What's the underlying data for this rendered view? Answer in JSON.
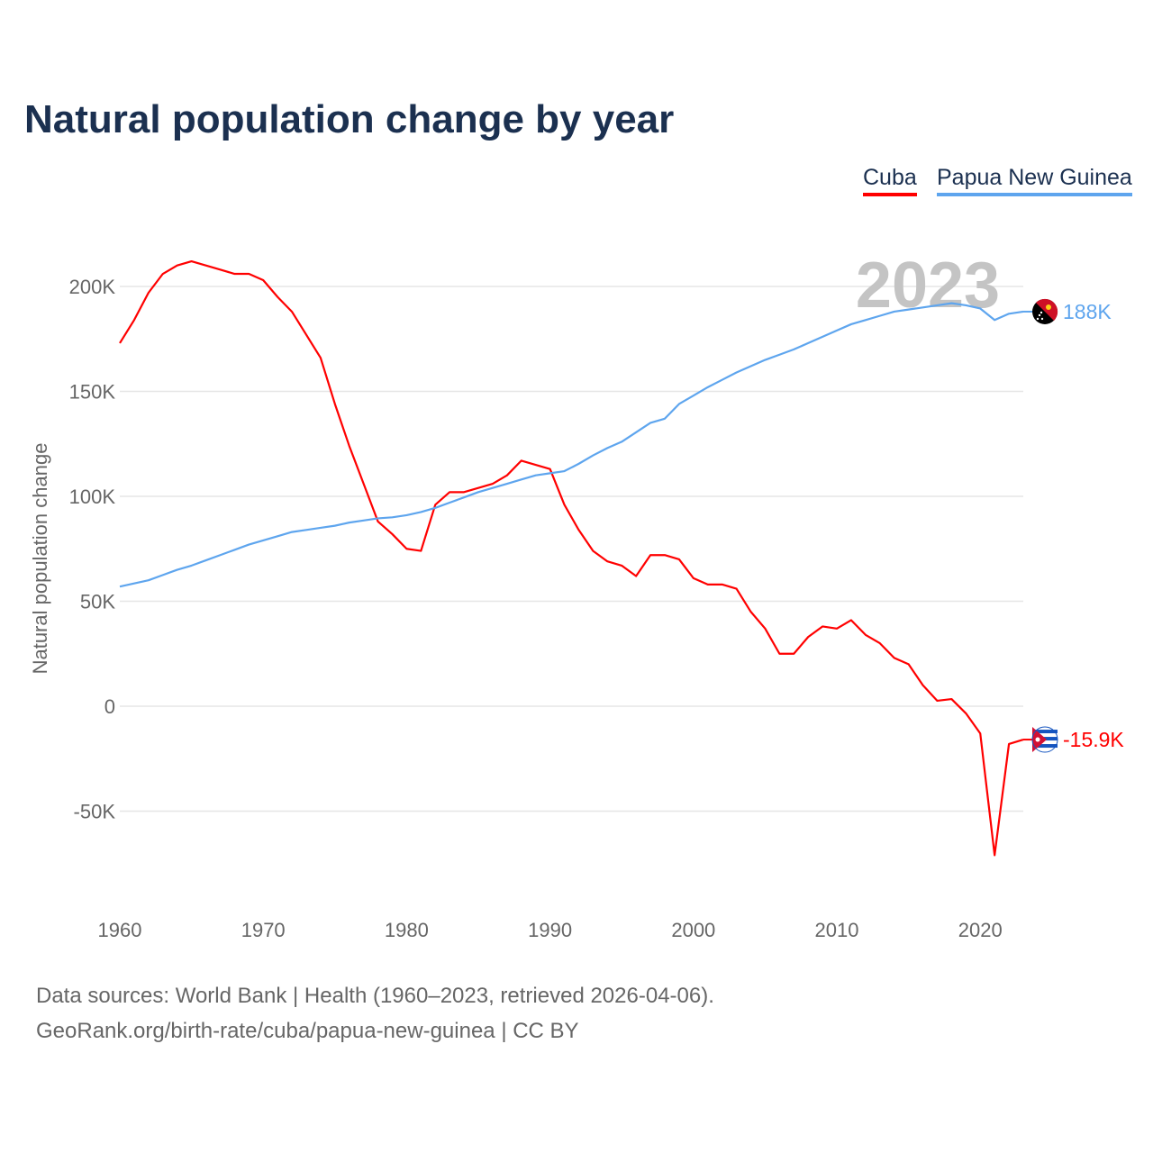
{
  "chart_data": {
    "type": "line",
    "title": "Natural population change by year",
    "xlabel": "",
    "ylabel": "Natural population change",
    "xlim": [
      1960,
      2023
    ],
    "ylim": [
      -100000,
      220000
    ],
    "grid": true,
    "legend_position": "top-right",
    "year_label": "2023",
    "x_ticks": [
      1960,
      1970,
      1980,
      1990,
      2000,
      2010,
      2020
    ],
    "x_tick_labels": [
      "1960",
      "1970",
      "1980",
      "1990",
      "2000",
      "2010",
      "2020"
    ],
    "y_ticks": [
      -50000,
      0,
      50000,
      100000,
      150000,
      200000
    ],
    "y_tick_labels": [
      "-50K",
      "0",
      "50K",
      "100K",
      "150K",
      "200K"
    ],
    "x": [
      1960,
      1961,
      1962,
      1963,
      1964,
      1965,
      1966,
      1967,
      1968,
      1969,
      1970,
      1971,
      1972,
      1973,
      1974,
      1975,
      1976,
      1977,
      1978,
      1979,
      1980,
      1981,
      1982,
      1983,
      1984,
      1985,
      1986,
      1987,
      1988,
      1989,
      1990,
      1991,
      1992,
      1993,
      1994,
      1995,
      1996,
      1997,
      1998,
      1999,
      2000,
      2001,
      2002,
      2003,
      2004,
      2005,
      2006,
      2007,
      2008,
      2009,
      2010,
      2011,
      2012,
      2013,
      2014,
      2015,
      2016,
      2017,
      2018,
      2019,
      2020,
      2021,
      2022,
      2023
    ],
    "series": [
      {
        "name": "Cuba",
        "color": "#ff0000",
        "end_label": "-15.9K",
        "values": [
          173000,
          184000,
          197000,
          206000,
          210000,
          212000,
          210000,
          208000,
          206000,
          206000,
          203000,
          195000,
          188000,
          177000,
          166000,
          144000,
          124000,
          106000,
          88000,
          82000,
          75000,
          74000,
          96000,
          102000,
          102000,
          104000,
          106000,
          110000,
          117000,
          115000,
          113000,
          96000,
          84000,
          74000,
          69000,
          67000,
          62000,
          72000,
          72000,
          70000,
          61000,
          58000,
          58000,
          56000,
          45000,
          37000,
          25000,
          25000,
          33000,
          38000,
          37000,
          41000,
          34000,
          30000,
          23000,
          20000,
          10000,
          2600,
          3400,
          -3400,
          -13000,
          -71000,
          -18000,
          -15900
        ]
      },
      {
        "name": "Papua New Guinea",
        "color": "#5ea5ee",
        "end_label": "188K",
        "values": [
          57000,
          58500,
          60000,
          62500,
          65000,
          67000,
          69500,
          72000,
          74500,
          77000,
          79000,
          81000,
          83000,
          84000,
          85000,
          86000,
          87500,
          88500,
          89500,
          90000,
          91000,
          92500,
          94500,
          97000,
          99500,
          102000,
          104000,
          106000,
          108000,
          110000,
          111000,
          112000,
          115500,
          119500,
          123000,
          126000,
          130500,
          135000,
          137000,
          144000,
          148000,
          152000,
          155500,
          159000,
          162000,
          165000,
          167500,
          170000,
          173000,
          176000,
          179000,
          182000,
          184000,
          186000,
          188000,
          189000,
          190000,
          191000,
          192000,
          191000,
          189500,
          184000,
          187000,
          188000
        ]
      }
    ]
  },
  "footer": {
    "line1": "Data sources: World Bank | Health (1960–2023, retrieved 2026-04-06).",
    "line2": "GeoRank.org/birth-rate/cuba/papua-new-guinea | CC BY"
  }
}
